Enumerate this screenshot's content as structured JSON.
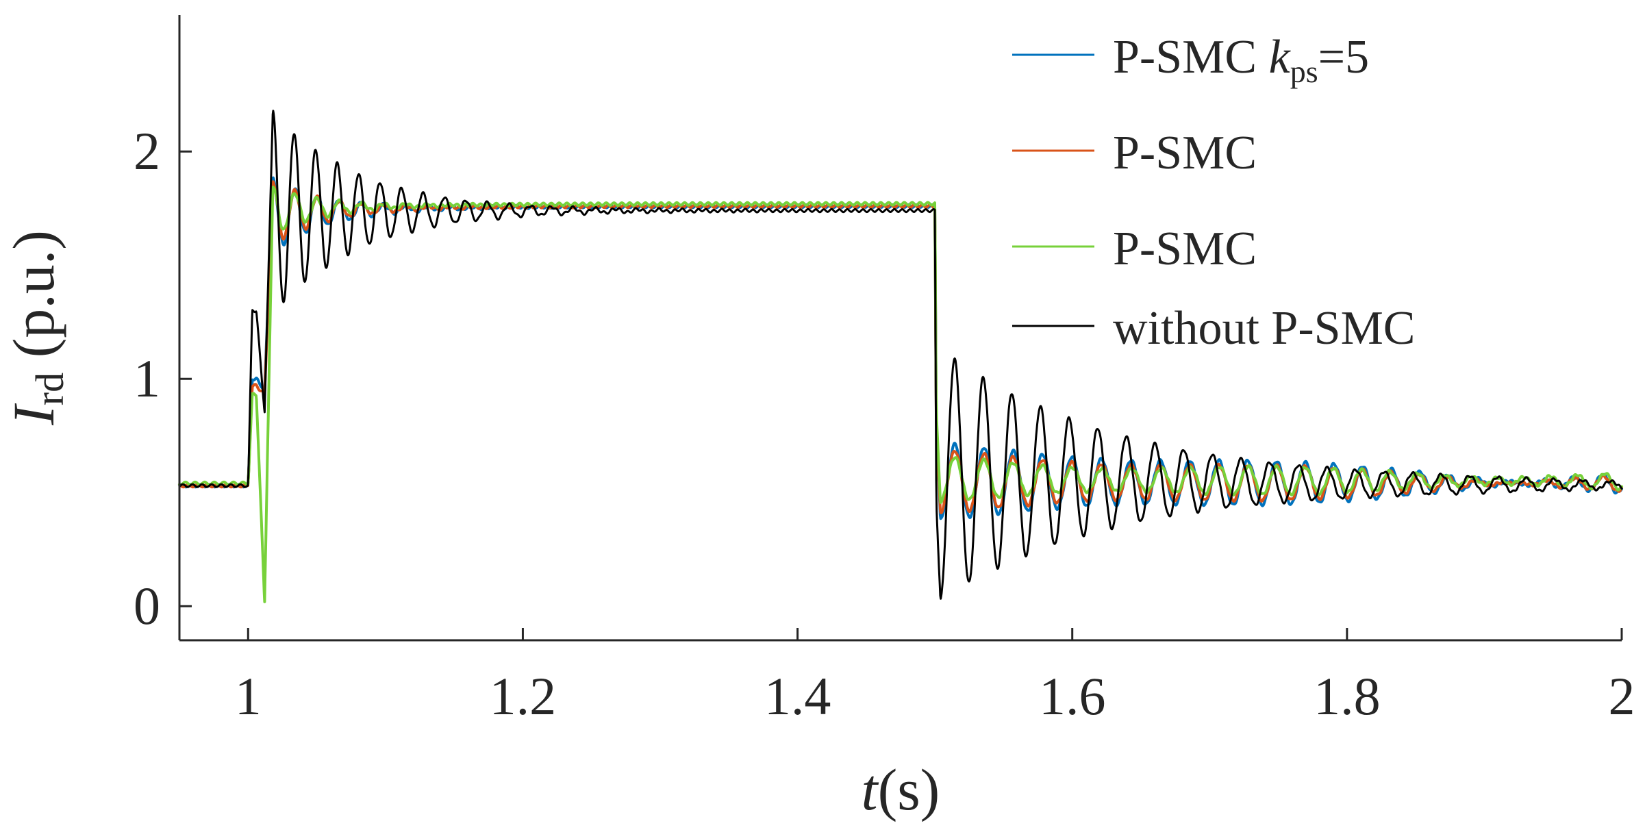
{
  "chart_data": {
    "type": "line",
    "title": "",
    "xlabel": {
      "italic": "t",
      "rest": "(s)"
    },
    "ylabel": {
      "main": "I",
      "sub": "rd",
      "rest": " (p.u.)"
    },
    "xlim": [
      0.95,
      2.0
    ],
    "ylim": [
      -0.15,
      2.6
    ],
    "xticks": [
      1,
      1.2,
      1.4,
      1.6,
      1.8,
      2
    ],
    "xtick_labels": [
      "1",
      "1.2",
      "1.4",
      "1.6",
      "1.8",
      "2"
    ],
    "yticks": [
      0,
      1,
      2
    ],
    "ytick_labels": [
      "0",
      "1",
      "2"
    ],
    "grid": false,
    "legend_position": "top-right",
    "series": [
      {
        "id": "blue",
        "color": "#0072BD",
        "legend": {
          "text": "P-SMC ",
          "italic": "k",
          "sub": "ps",
          "after": "=5"
        },
        "pre_fault": 0.53,
        "step1": {
          "start": 1.0,
          "jump": 1.0,
          "dip": 0.95,
          "osc_center": 1.72,
          "osc_amp": 0.16,
          "freq": 62,
          "decay": 25,
          "steady": 1.76
        },
        "step2": {
          "start": 1.5,
          "jump": 0.8,
          "osc_center": 0.55,
          "osc_amp": 0.17,
          "freq": 47,
          "decay": 3.5,
          "steady": 0.54,
          "ripple": 0.04
        }
      },
      {
        "id": "orange",
        "color": "#D95319",
        "legend": {
          "text": "P-SMC"
        },
        "pre_fault": 0.53,
        "step1": {
          "start": 1.0,
          "jump": 0.97,
          "dip": 0.93,
          "osc_center": 1.73,
          "osc_amp": 0.14,
          "freq": 62,
          "decay": 26,
          "steady": 1.76
        },
        "step2": {
          "start": 1.5,
          "jump": 0.78,
          "osc_center": 0.55,
          "osc_amp": 0.14,
          "freq": 47,
          "decay": 3.8,
          "steady": 0.54,
          "ripple": 0.035
        }
      },
      {
        "id": "green",
        "color": "#77D13A",
        "legend": {
          "text": "P-SMC"
        },
        "pre_fault": 0.54,
        "step1": {
          "start": 1.0,
          "jump": 0.93,
          "dip": 0.02,
          "osc_center": 1.74,
          "osc_amp": 0.11,
          "freq": 62,
          "decay": 28,
          "steady": 1.77
        },
        "step2": {
          "start": 1.5,
          "jump": 0.85,
          "osc_center": 0.56,
          "osc_amp": 0.1,
          "freq": 47,
          "decay": 4.2,
          "steady": 0.55,
          "ripple": 0.04
        }
      },
      {
        "id": "black",
        "color": "#000000",
        "legend": {
          "text": "without P-SMC"
        },
        "pre_fault": 0.53,
        "step1": {
          "start": 1.0,
          "jump": 1.3,
          "dip": 0.85,
          "osc_center": 1.73,
          "osc_amp": 0.45,
          "freq": 64,
          "decay": 16,
          "steady": 1.74
        },
        "step2": {
          "start": 1.5,
          "jump": 0.45,
          "osc_center": 0.58,
          "osc_amp": 0.55,
          "freq": 48,
          "decay": 7.5,
          "steady": 0.53,
          "ripple": 0.008
        }
      }
    ]
  }
}
